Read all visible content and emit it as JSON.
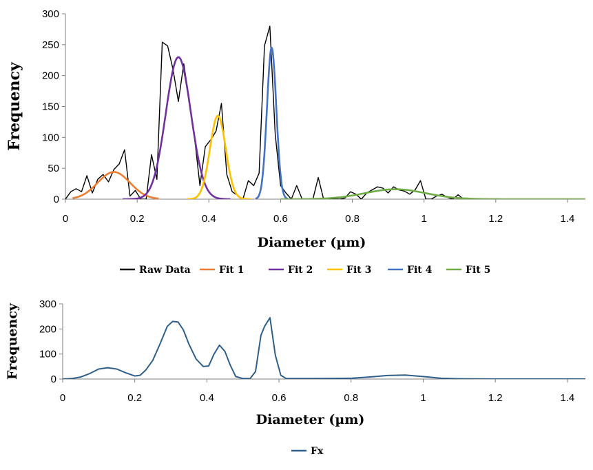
{
  "chart_data": [
    {
      "type": "line",
      "xlabel": "Diameter (µm)",
      "ylabel": "Frequency",
      "xlim": [
        0,
        1.4
      ],
      "xticks": [
        0,
        0.2,
        0.4,
        0.6,
        0.8,
        1,
        1.2,
        1.4
      ],
      "xtick_labels": [
        "0",
        "0.2",
        "0.4",
        "0.6",
        "0.8",
        "1",
        "1.2",
        "1.4"
      ],
      "ylim": [
        0,
        300
      ],
      "yticks": [
        0,
        50,
        100,
        150,
        200,
        250,
        300
      ],
      "ytick_labels": [
        "0",
        "50",
        "100",
        "150",
        "200",
        "250",
        "300"
      ],
      "grid": false,
      "legend": "bottom",
      "series": [
        {
          "name": "Raw Data",
          "color": "#000000",
          "style": "polyline",
          "x": [
            0,
            0.015,
            0.03,
            0.045,
            0.06,
            0.075,
            0.09,
            0.105,
            0.12,
            0.135,
            0.15,
            0.165,
            0.18,
            0.195,
            0.21,
            0.225,
            0.24,
            0.255,
            0.27,
            0.285,
            0.3,
            0.315,
            0.33,
            0.345,
            0.36,
            0.375,
            0.39,
            0.405,
            0.42,
            0.435,
            0.45,
            0.465,
            0.48,
            0.495,
            0.51,
            0.525,
            0.54,
            0.555,
            0.57,
            0.585,
            0.6,
            0.615,
            0.63,
            0.645,
            0.66,
            0.675,
            0.69,
            0.705,
            0.72,
            0.735,
            0.75,
            0.765,
            0.78,
            0.795,
            0.81,
            0.825,
            0.84,
            0.855,
            0.87,
            0.885,
            0.9,
            0.915,
            0.93,
            0.945,
            0.96,
            0.975,
            0.99,
            1.005,
            1.02,
            1.035,
            1.05,
            1.065,
            1.08,
            1.095,
            1.11,
            1.14,
            1.2,
            1.3,
            1.45
          ],
          "y": [
            0,
            12,
            17,
            12,
            38,
            10,
            32,
            40,
            28,
            48,
            57,
            80,
            5,
            14,
            0,
            0,
            72,
            32,
            254,
            248,
            210,
            158,
            219,
            163,
            100,
            22,
            85,
            96,
            110,
            155,
            40,
            12,
            6,
            0,
            30,
            22,
            42,
            248,
            280,
            105,
            22,
            10,
            0,
            22,
            0,
            0,
            0,
            35,
            0,
            0,
            0,
            0,
            2,
            12,
            8,
            0,
            10,
            15,
            20,
            18,
            10,
            20,
            15,
            13,
            8,
            15,
            30,
            0,
            0,
            5,
            8,
            3,
            0,
            7,
            0,
            0,
            0,
            0,
            0
          ]
        },
        {
          "name": "Fit 1",
          "color": "#ED7D31",
          "style": "gaussian",
          "amplitude": 44,
          "center": 0.135,
          "sigma": 0.045,
          "range": [
            0.02,
            0.26
          ]
        },
        {
          "name": "Fit 2",
          "color": "#7030A0",
          "style": "gaussian",
          "amplitude": 230,
          "center": 0.315,
          "sigma": 0.035,
          "range": [
            0.16,
            0.46
          ]
        },
        {
          "name": "Fit 3",
          "color": "#FFC000",
          "style": "gaussian",
          "amplitude": 135,
          "center": 0.425,
          "sigma": 0.022,
          "range": [
            0.34,
            0.52
          ]
        },
        {
          "name": "Fit 4",
          "color": "#4472C4",
          "style": "gaussian",
          "amplitude": 245,
          "center": 0.575,
          "sigma": 0.013,
          "range": [
            0.53,
            0.62
          ]
        },
        {
          "name": "Fit 5",
          "color": "#70AD47",
          "style": "gaussian",
          "amplitude": 16,
          "center": 0.92,
          "sigma": 0.085,
          "range": [
            0.6,
            1.45
          ]
        }
      ]
    },
    {
      "type": "line",
      "xlabel": "Diameter (µm)",
      "ylabel": "Frequency",
      "xlim": [
        0,
        1.4
      ],
      "xticks": [
        0,
        0.2,
        0.4,
        0.6,
        0.8,
        1,
        1.2,
        1.4
      ],
      "xtick_labels": [
        "0",
        "0.2",
        "0.4",
        "0.6",
        "0.8",
        "1",
        "1.2",
        "1.4"
      ],
      "ylim": [
        0,
        300
      ],
      "yticks": [
        0,
        100,
        200,
        300
      ],
      "ytick_labels": [
        "0",
        "100",
        "200",
        "300"
      ],
      "grid": false,
      "legend": "bottom",
      "series": [
        {
          "name": "Fx",
          "color": "#2E5F8A",
          "style": "polyline",
          "x": [
            0,
            0.025,
            0.05,
            0.075,
            0.1,
            0.125,
            0.15,
            0.175,
            0.2,
            0.215,
            0.23,
            0.25,
            0.27,
            0.29,
            0.305,
            0.32,
            0.335,
            0.35,
            0.37,
            0.39,
            0.405,
            0.42,
            0.435,
            0.45,
            0.465,
            0.48,
            0.5,
            0.52,
            0.535,
            0.55,
            0.56,
            0.575,
            0.59,
            0.605,
            0.62,
            0.7,
            0.8,
            0.85,
            0.9,
            0.95,
            1.0,
            1.05,
            1.1,
            1.2,
            1.3,
            1.45
          ],
          "y": [
            0,
            2,
            8,
            22,
            40,
            45,
            40,
            25,
            12,
            15,
            35,
            75,
            140,
            210,
            230,
            228,
            195,
            140,
            80,
            50,
            52,
            100,
            135,
            110,
            55,
            10,
            2,
            2,
            30,
            175,
            210,
            245,
            95,
            15,
            2,
            2,
            3,
            8,
            14,
            16,
            10,
            3,
            1,
            0,
            0,
            0
          ]
        }
      ]
    }
  ]
}
